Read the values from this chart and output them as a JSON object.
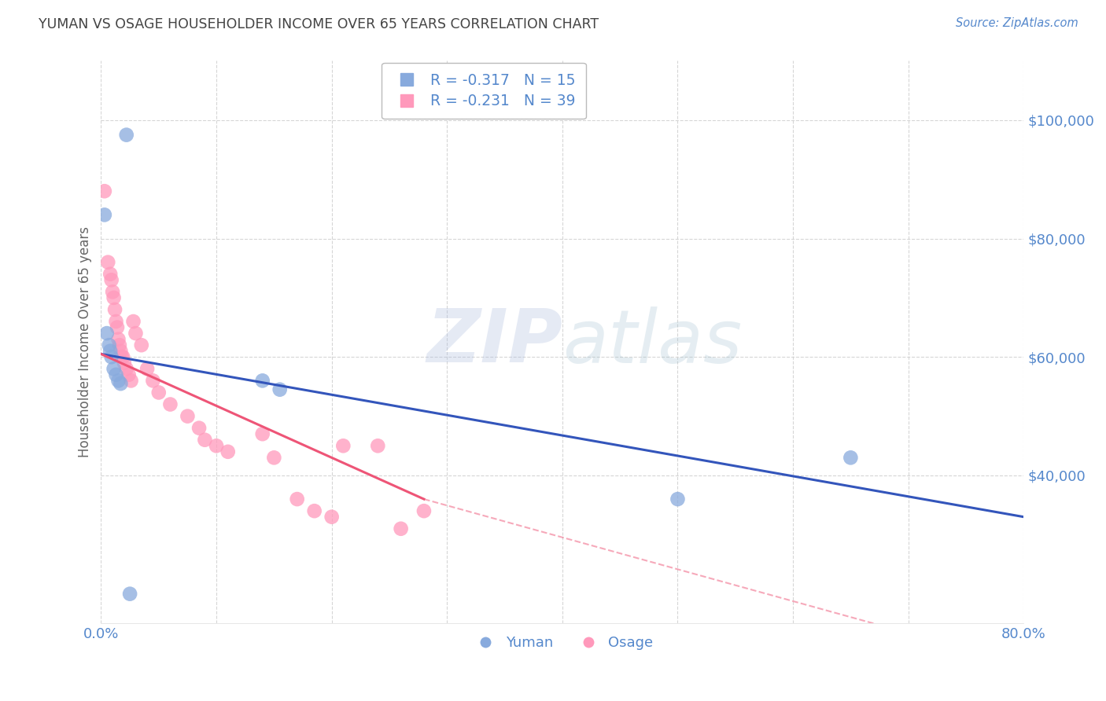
{
  "title": "YUMAN VS OSAGE HOUSEHOLDER INCOME OVER 65 YEARS CORRELATION CHART",
  "source": "Source: ZipAtlas.com",
  "ylabel": "Householder Income Over 65 years",
  "yuman_label": "Yuman",
  "osage_label": "Osage",
  "yuman_R": -0.317,
  "yuman_N": 15,
  "osage_R": -0.231,
  "osage_N": 39,
  "yuman_color": "#88AADD",
  "osage_color": "#FF99BB",
  "yuman_line_color": "#3355BB",
  "osage_line_color": "#EE5577",
  "background_color": "#FFFFFF",
  "grid_color": "#CCCCCC",
  "axis_color": "#5588CC",
  "title_color": "#444444",
  "xlim": [
    0.0,
    0.8
  ],
  "ylim": [
    15000,
    110000
  ],
  "yuman_x": [
    0.022,
    0.003,
    0.005,
    0.007,
    0.008,
    0.009,
    0.011,
    0.013,
    0.015,
    0.017,
    0.14,
    0.155,
    0.5,
    0.65,
    0.025
  ],
  "yuman_y": [
    97500,
    84000,
    64000,
    62000,
    61000,
    60000,
    58000,
    57000,
    56000,
    55500,
    56000,
    54500,
    36000,
    43000,
    20000
  ],
  "osage_x": [
    0.003,
    0.006,
    0.008,
    0.009,
    0.01,
    0.011,
    0.012,
    0.013,
    0.014,
    0.015,
    0.016,
    0.017,
    0.018,
    0.019,
    0.02,
    0.022,
    0.024,
    0.026,
    0.028,
    0.03,
    0.035,
    0.04,
    0.045,
    0.05,
    0.06,
    0.075,
    0.085,
    0.09,
    0.1,
    0.11,
    0.14,
    0.15,
    0.17,
    0.185,
    0.2,
    0.21,
    0.24,
    0.26,
    0.28
  ],
  "osage_y": [
    88000,
    76000,
    74000,
    73000,
    71000,
    70000,
    68000,
    66000,
    65000,
    63000,
    62000,
    61000,
    60000,
    60000,
    59000,
    58000,
    57000,
    56000,
    66000,
    64000,
    62000,
    58000,
    56000,
    54000,
    52000,
    50000,
    48000,
    46000,
    45000,
    44000,
    47000,
    43000,
    36000,
    34000,
    33000,
    45000,
    45000,
    31000,
    34000
  ],
  "watermark_zip_color": "#AABBDD",
  "watermark_atlas_color": "#AABBCC",
  "legend_box_color": "#FFFFFF",
  "legend_edge_color": "#BBBBBB"
}
